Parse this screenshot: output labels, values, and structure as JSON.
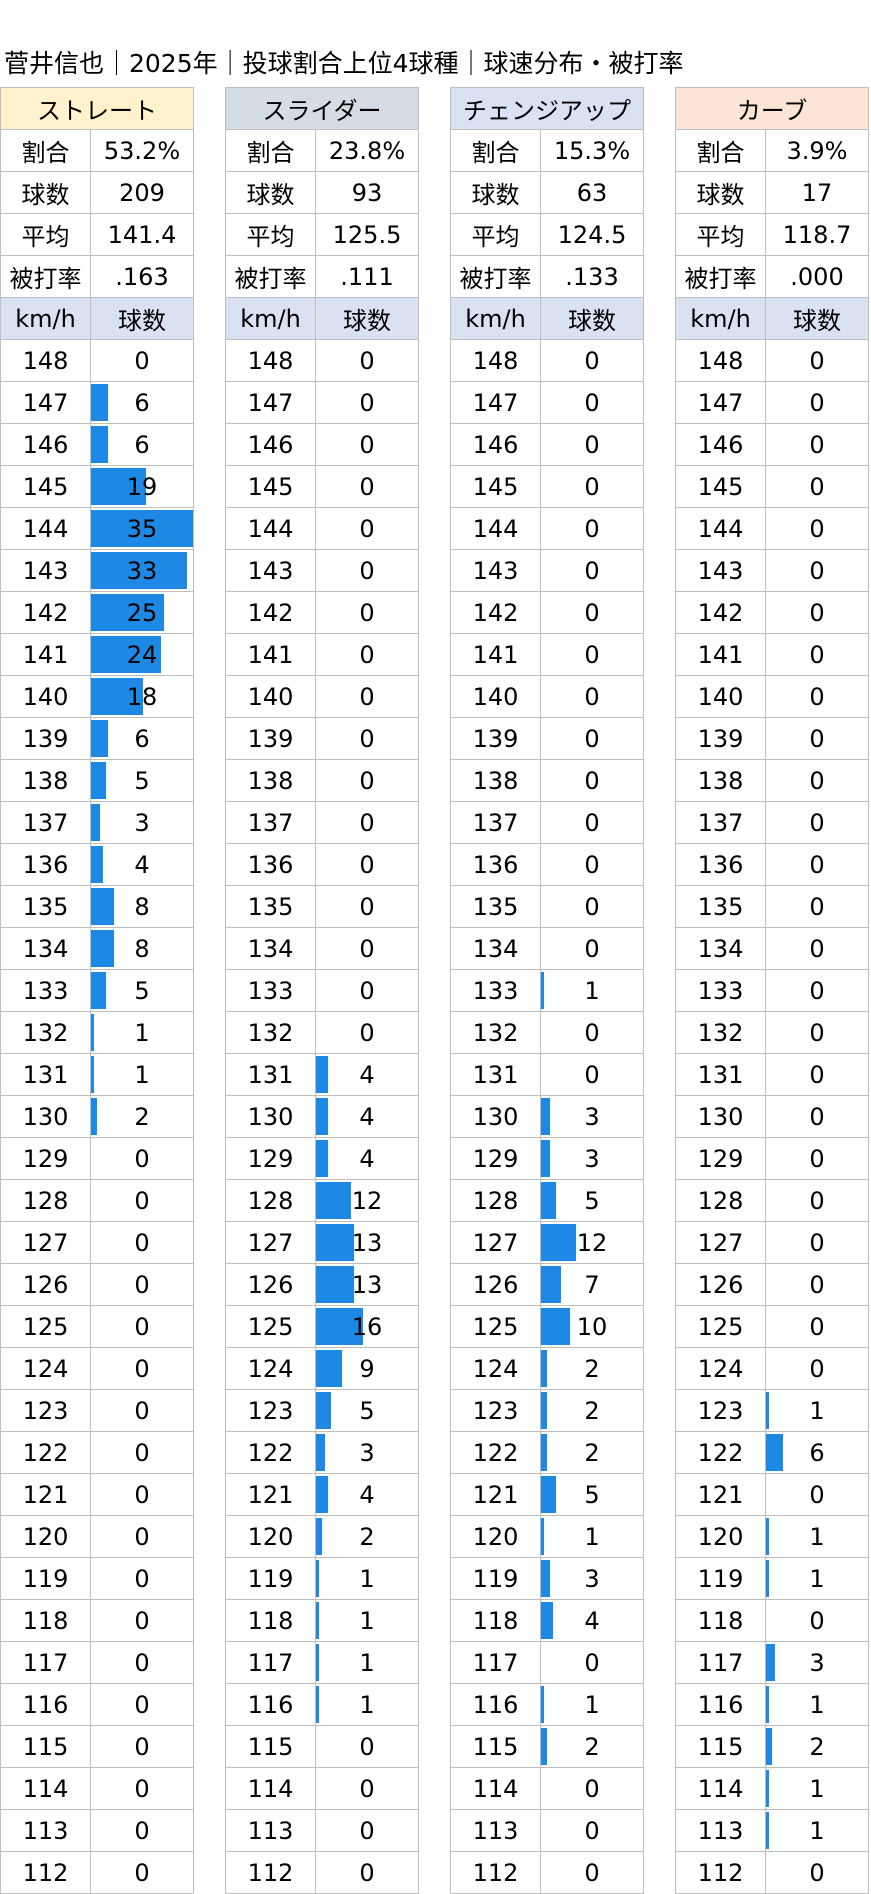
{
  "title": "菅井信也｜2025年｜投球割合上位4球種｜球速分布・被打率",
  "chart_data": {
    "type": "table",
    "header_labels": {
      "share": "割合",
      "count": "球数",
      "avg": "平均",
      "bavg": "被打率"
    },
    "col_headers": [
      "km/h",
      "球数"
    ],
    "speeds": [
      148,
      147,
      146,
      145,
      144,
      143,
      142,
      141,
      140,
      139,
      138,
      137,
      136,
      135,
      134,
      133,
      132,
      131,
      130,
      129,
      128,
      127,
      126,
      125,
      124,
      123,
      122,
      121,
      120,
      119,
      118,
      117,
      116,
      115,
      114,
      113,
      112
    ],
    "bar_max": 35,
    "pitches": [
      {
        "name": "ストレート",
        "header_color": "#fff2cc",
        "share": "53.2%",
        "count": "209",
        "avg": "141.4",
        "bavg": ".163",
        "counts": [
          0,
          6,
          6,
          19,
          35,
          33,
          25,
          24,
          18,
          6,
          5,
          3,
          4,
          8,
          8,
          5,
          1,
          1,
          2,
          0,
          0,
          0,
          0,
          0,
          0,
          0,
          0,
          0,
          0,
          0,
          0,
          0,
          0,
          0,
          0,
          0,
          0
        ]
      },
      {
        "name": "スライダー",
        "header_color": "#d6dce4",
        "share": "23.8%",
        "count": "93",
        "avg": "125.5",
        "bavg": ".111",
        "counts": [
          0,
          0,
          0,
          0,
          0,
          0,
          0,
          0,
          0,
          0,
          0,
          0,
          0,
          0,
          0,
          0,
          0,
          4,
          4,
          4,
          12,
          13,
          13,
          16,
          9,
          5,
          3,
          4,
          2,
          1,
          1,
          1,
          1,
          0,
          0,
          0,
          0
        ]
      },
      {
        "name": "チェンジアップ",
        "header_color": "#d9e1f2",
        "share": "15.3%",
        "count": "63",
        "avg": "124.5",
        "bavg": ".133",
        "counts": [
          0,
          0,
          0,
          0,
          0,
          0,
          0,
          0,
          0,
          0,
          0,
          0,
          0,
          0,
          0,
          1,
          0,
          0,
          3,
          3,
          5,
          12,
          7,
          10,
          2,
          2,
          2,
          5,
          1,
          3,
          4,
          0,
          1,
          2,
          0,
          0,
          0
        ]
      },
      {
        "name": "カーブ",
        "header_color": "#fce4d6",
        "share": "3.9%",
        "count": "17",
        "avg": "118.7",
        "bavg": ".000",
        "counts": [
          0,
          0,
          0,
          0,
          0,
          0,
          0,
          0,
          0,
          0,
          0,
          0,
          0,
          0,
          0,
          0,
          0,
          0,
          0,
          0,
          0,
          0,
          0,
          0,
          0,
          1,
          6,
          0,
          1,
          1,
          0,
          3,
          1,
          2,
          1,
          1,
          0
        ]
      }
    ]
  }
}
